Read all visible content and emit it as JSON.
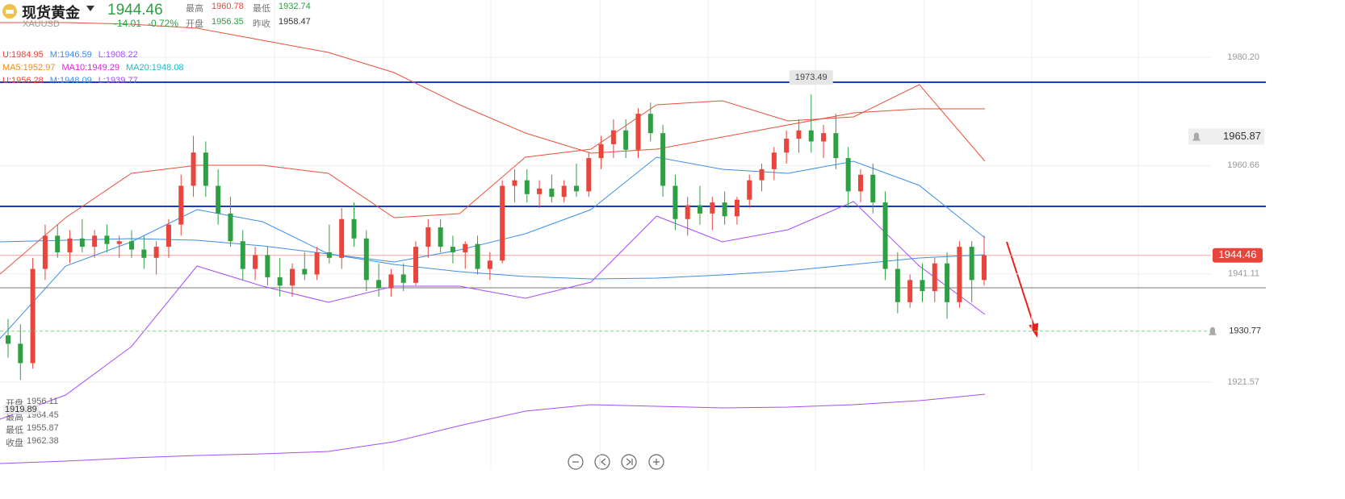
{
  "header": {
    "name": "现货黄金",
    "symbol": "XAUUSD",
    "price": 1944.46,
    "change": "-14.01",
    "change_pct": "-0.72%",
    "stats": [
      {
        "label": "最高",
        "value": 1960.78,
        "color": "#e8453c"
      },
      {
        "label": "开盘",
        "value": 1956.35,
        "color": "#2ea043"
      },
      {
        "label": "最低",
        "value": 1932.74,
        "color": "#2ea043"
      },
      {
        "label": "昨收",
        "value": 1958.47,
        "color": "#333333"
      }
    ]
  },
  "indicators": [
    [
      {
        "text": "U:1984.95",
        "color": "#e8453c"
      },
      {
        "text": "M:1946.59",
        "color": "#3d8fe8"
      },
      {
        "text": "L:1908.22",
        "color": "#a64dff"
      }
    ],
    [
      {
        "text": "MA5:1952.97",
        "color": "#f08c1a"
      },
      {
        "text": "MA10:1949.29",
        "color": "#e024d8"
      },
      {
        "text": "MA20:1948.08",
        "color": "#1fb8c9"
      }
    ],
    [
      {
        "text": "U:1956.28",
        "color": "#e8453c"
      },
      {
        "text": "M:1948.09",
        "color": "#3d8fe8"
      },
      {
        "text": "L:1939.77",
        "color": "#a64dff"
      }
    ]
  ],
  "tooltip": {
    "crosshair_price": 1919.89,
    "rows": [
      {
        "label": "开盘",
        "value": 1956.11
      },
      {
        "label": "最高",
        "value": 1964.45
      },
      {
        "label": "最低",
        "value": 1955.87
      },
      {
        "label": "收盘",
        "value": 1962.38
      }
    ]
  },
  "chart_data": {
    "type": "candlestick",
    "ylim": [
      1905.72,
      1990.53
    ],
    "yticks": [
      {
        "value": 1980.2,
        "label": "1980.20"
      },
      1960.66,
      1941.11,
      1921.57
    ],
    "up_color": "#e8453c",
    "down_color": "#2ea043",
    "grid": true,
    "candles": [
      [
        1930,
        1933,
        1926,
        1928.5
      ],
      [
        1928.5,
        1932,
        1922,
        1925
      ],
      [
        1925,
        1944,
        1924,
        1942
      ],
      [
        1942,
        1950,
        1940,
        1948
      ],
      [
        1948,
        1950,
        1944,
        1945
      ],
      [
        1945,
        1949,
        1943,
        1947.5
      ],
      [
        1947.5,
        1951,
        1945,
        1946
      ],
      [
        1946,
        1949,
        1944,
        1948
      ],
      [
        1948,
        1950,
        1945,
        1946.5
      ],
      [
        1946.5,
        1948,
        1944,
        1947
      ],
      [
        1947,
        1949,
        1944,
        1945.5
      ],
      [
        1945.5,
        1948,
        1942,
        1944
      ],
      [
        1944,
        1947,
        1941,
        1946
      ],
      [
        1946,
        1951,
        1944,
        1950
      ],
      [
        1950,
        1959,
        1948,
        1957
      ],
      [
        1957,
        1966,
        1955,
        1963
      ],
      [
        1963,
        1965,
        1955,
        1957
      ],
      [
        1957,
        1960,
        1950,
        1952
      ],
      [
        1952,
        1955,
        1946,
        1947
      ],
      [
        1947,
        1949,
        1940,
        1942
      ],
      [
        1942,
        1946,
        1940,
        1944.5
      ],
      [
        1944.5,
        1946,
        1939,
        1940.5
      ],
      [
        1940.5,
        1944,
        1937,
        1939
      ],
      [
        1939,
        1943,
        1937,
        1942
      ],
      [
        1942,
        1945,
        1940,
        1941
      ],
      [
        1941,
        1946,
        1940,
        1945
      ],
      [
        1945,
        1950,
        1943,
        1944
      ],
      [
        1944,
        1953,
        1942,
        1951
      ],
      [
        1951,
        1954,
        1946,
        1947.5
      ],
      [
        1947.5,
        1949,
        1938,
        1940
      ],
      [
        1940,
        1943,
        1937,
        1938.5
      ],
      [
        1938.5,
        1942,
        1937,
        1941
      ],
      [
        1941,
        1943,
        1938,
        1939.5
      ],
      [
        1939.5,
        1947,
        1939,
        1946
      ],
      [
        1946,
        1951,
        1944,
        1949.5
      ],
      [
        1949.5,
        1951,
        1945,
        1946
      ],
      [
        1946,
        1948,
        1943,
        1945
      ],
      [
        1945,
        1947,
        1942,
        1946.5
      ],
      [
        1946.5,
        1948,
        1941,
        1942
      ],
      [
        1942,
        1945,
        1940,
        1943.5
      ],
      [
        1943.5,
        1958,
        1943,
        1957
      ],
      [
        1957,
        1960,
        1954,
        1958
      ],
      [
        1958,
        1960,
        1954,
        1955.5
      ],
      [
        1955.5,
        1958,
        1953,
        1956.5
      ],
      [
        1956.5,
        1959,
        1954,
        1955
      ],
      [
        1955,
        1958,
        1954,
        1957
      ],
      [
        1957,
        1961,
        1955,
        1956
      ],
      [
        1956,
        1963,
        1955,
        1962
      ],
      [
        1962,
        1966,
        1960,
        1964.5
      ],
      [
        1964.5,
        1969,
        1962,
        1967
      ],
      [
        1967,
        1969,
        1962,
        1963.5
      ],
      [
        1963.5,
        1971,
        1962,
        1970
      ],
      [
        1970,
        1972,
        1965,
        1966.5
      ],
      [
        1966.5,
        1968,
        1955,
        1957
      ],
      [
        1957,
        1959,
        1949,
        1951
      ],
      [
        1951,
        1955,
        1948,
        1953.5
      ],
      [
        1953.5,
        1957,
        1950,
        1952
      ],
      [
        1952,
        1955,
        1949,
        1954
      ],
      [
        1954,
        1956,
        1950,
        1951.5
      ],
      [
        1951.5,
        1955,
        1950,
        1954.5
      ],
      [
        1954.5,
        1959,
        1953,
        1958
      ],
      [
        1958,
        1961,
        1956,
        1960
      ],
      [
        1960,
        1964,
        1958,
        1963
      ],
      [
        1963,
        1967,
        1961,
        1965.5
      ],
      [
        1965.5,
        1969,
        1963,
        1967
      ],
      [
        1967,
        1973.49,
        1963,
        1965
      ],
      [
        1965,
        1968,
        1962,
        1966.5
      ],
      [
        1966.5,
        1970,
        1960,
        1962
      ],
      [
        1962,
        1964,
        1953,
        1956
      ],
      [
        1956,
        1960,
        1954,
        1959
      ],
      [
        1959,
        1961,
        1952,
        1954
      ],
      [
        1954,
        1956,
        1940,
        1942
      ],
      [
        1942,
        1945,
        1934,
        1936
      ],
      [
        1936,
        1941,
        1935,
        1940
      ],
      [
        1940,
        1943,
        1936,
        1938
      ],
      [
        1938,
        1944,
        1936,
        1943
      ],
      [
        1943,
        1945,
        1933,
        1936
      ],
      [
        1936,
        1947,
        1935,
        1946
      ],
      [
        1946,
        1947,
        1936,
        1940
      ],
      [
        1940,
        1948,
        1939,
        1944.46
      ]
    ],
    "high_index": 65,
    "lines": [
      {
        "color": "#e8503a",
        "values": [
          1986.46,
          1986.46,
          1986.17,
          1985.44,
          1983.26,
          1981.07,
          1977.44,
          1971.62,
          1966.53,
          1962.89,
          1963.62,
          1965.8,
          1967.98,
          1970.16,
          1970.89,
          1970.89
        ]
      },
      {
        "color": "#a64dff",
        "values": [
          1906.88,
          1907.32,
          1907.9,
          1908.34,
          1908.63,
          1909.06,
          1910.81,
          1913.72,
          1916.34,
          1917.5,
          1917.21,
          1916.92,
          1917.06,
          1917.5,
          1918.23,
          1919.39
        ]
      },
      {
        "color": "#3d8fe8",
        "values": [
          1946.89,
          1947.18,
          1947.47,
          1947.18,
          1946.16,
          1944.7,
          1942.81,
          1941.5,
          1940.63,
          1940.2,
          1940.34,
          1940.92,
          1941.65,
          1942.81,
          1943.98,
          1944.56
        ]
      },
      {
        "color": "#e8503a",
        "values": [
          1941.07,
          1951.25,
          1959.25,
          1960.71,
          1960.71,
          1959.25,
          1951.25,
          1951.98,
          1962.16,
          1963.62,
          1971.62,
          1972.35,
          1968.71,
          1969.44,
          1975.26,
          1961.43
        ]
      },
      {
        "color": "#a64dff",
        "values": [
          1914.88,
          1919.25,
          1927.98,
          1942.52,
          1938.89,
          1935.98,
          1938.89,
          1938.89,
          1936.7,
          1939.61,
          1951.54,
          1946.89,
          1949.07,
          1954.16,
          1942.52,
          1933.79
        ]
      },
      {
        "color": "#3d8fe8",
        "values": [
          1929.43,
          1942.52,
          1946.89,
          1952.71,
          1950.52,
          1944.7,
          1943.25,
          1945.43,
          1948.34,
          1952.71,
          1962.16,
          1959.98,
          1959.25,
          1961.43,
          1957.07,
          1947.61
        ]
      }
    ],
    "levels": [
      {
        "value": 1975.7,
        "color": "#1a3bc4",
        "width": 2
      },
      {
        "value": 1953.29,
        "color": "#1a3bc4",
        "width": 2
      },
      {
        "value": 1938.6,
        "color": "#777777",
        "width": 1
      }
    ],
    "alerts": [
      1965.87,
      1930.77
    ]
  }
}
